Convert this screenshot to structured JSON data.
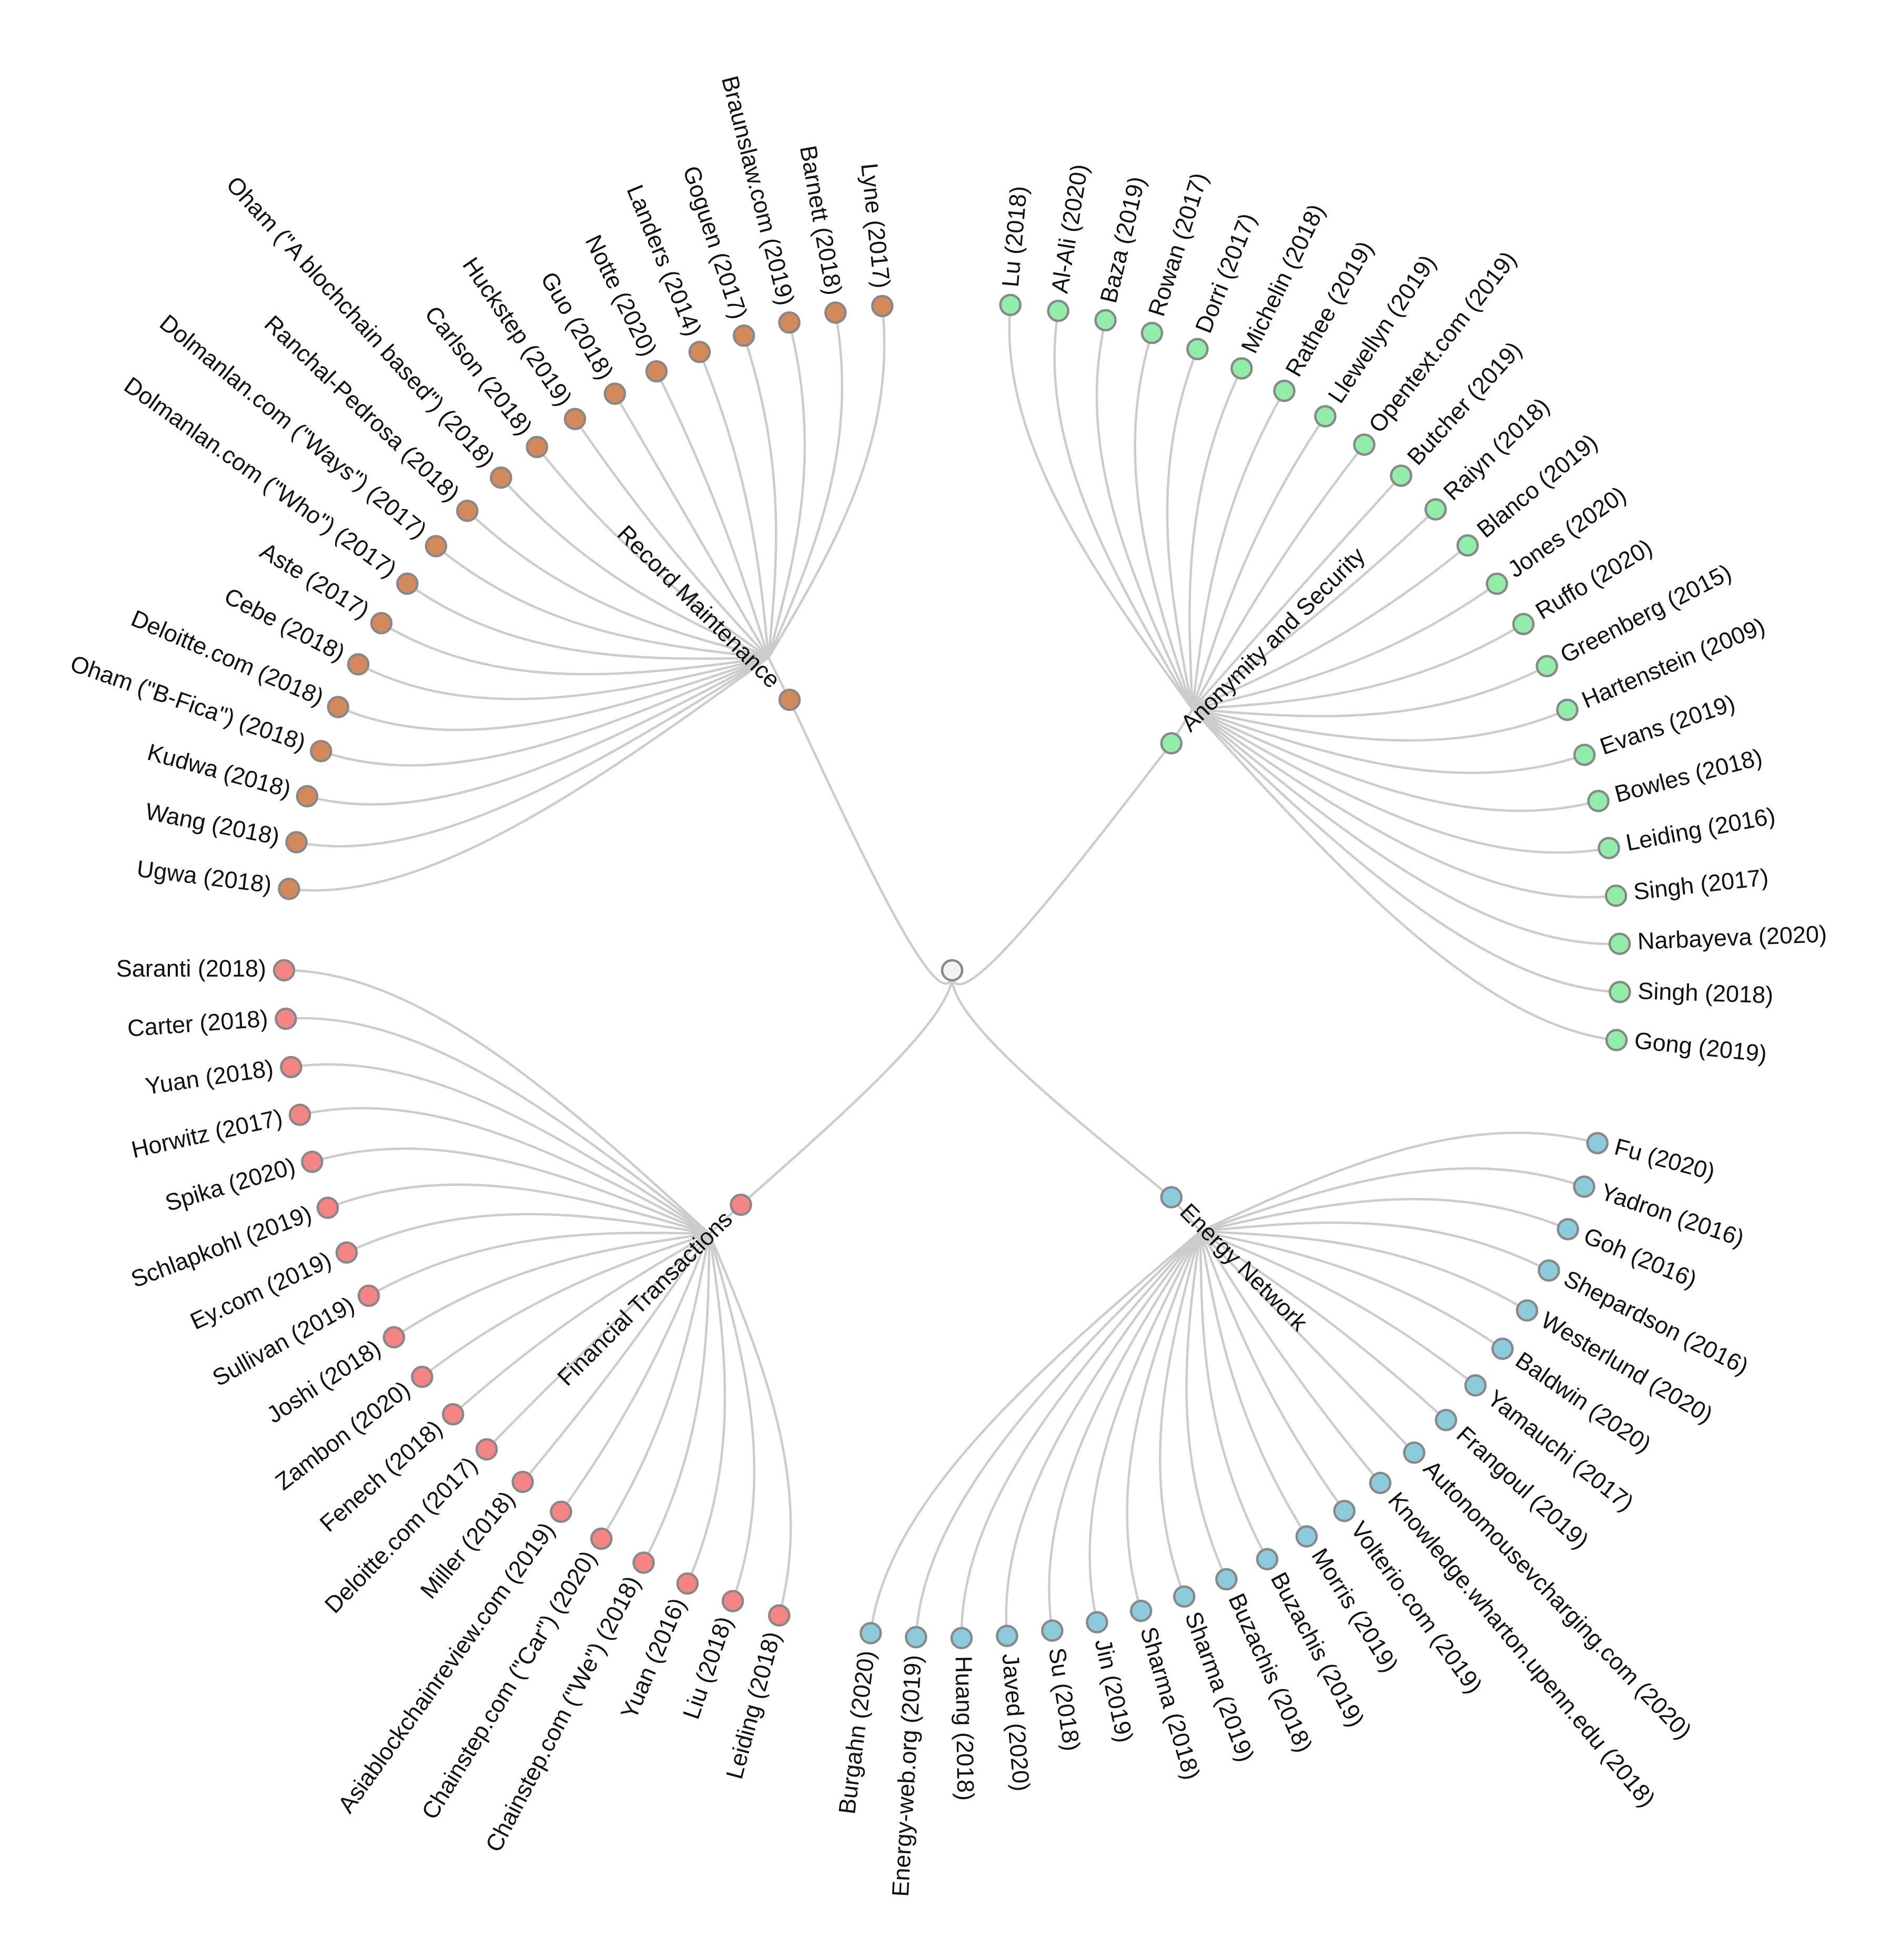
{
  "diagram": {
    "type": "radial-dendrogram",
    "node_outline_color": "#888888",
    "link_color": "#cccccc",
    "root": {
      "name": "",
      "color": "#f2f2f2"
    },
    "categories": [
      {
        "name": "Record Maintenance",
        "color": "#d4895a",
        "leaves": [
          "Ugwa (2018)",
          "Wang (2018)",
          "Kudwa (2018)",
          "Oham (\"B-Fica\") (2018)",
          "Deloitte.com (2018)",
          "Cebe (2018)",
          "Aste (2017)",
          "Dolmanlan.com (\"Who\") (2017)",
          "Dolmanlan.com (\"Ways\") (2017)",
          "Ranchal-Pedrosa (2018)",
          "Oham (\"A blochchain based\") (2018)",
          "Carlson (2018)",
          "Huckstep (2019)",
          "Guo (2018)",
          "Notte (2020)",
          "Landers (2014)",
          "Goguen (2017)",
          "Braunslaw.com (2019)",
          "Barnett (2018)",
          "Lyne (2017)"
        ]
      },
      {
        "name": "Anonymity and Security",
        "color": "#90eea8",
        "leaves": [
          "Lu (2018)",
          "Al-Ali (2020)",
          "Baza (2019)",
          "Rowan (2017)",
          "Dorri (2017)",
          "Michelin (2018)",
          "Rathee (2019)",
          "Llewellyn (2019)",
          "Opentext.com (2019)",
          "Butcher (2019)",
          "Raiyn (2018)",
          "Blanco (2019)",
          "Jones (2020)",
          "Ruffo (2020)",
          "Greenberg (2015)",
          "Hartenstein (2009)",
          "Evans (2019)",
          "Bowles (2018)",
          "Leiding (2016)",
          "Singh (2017)",
          "Narbayeva (2020)",
          "Singh (2018)",
          "Gong (2019)"
        ]
      },
      {
        "name": "Energy Network",
        "color": "#8ccbdc",
        "leaves": [
          "Fu (2020)",
          "Yadron (2016)",
          "Goh (2016)",
          "Shepardson (2016)",
          "Westerlund (2020)",
          "Baldwin (2020)",
          "Yamauchi (2017)",
          "Frangoul (2019)",
          "Autonomousevcharging.com (2020)",
          "Knowledge.wharton.upenn.edu (2018)",
          "Volterio.com (2019)",
          "Morris (2019)",
          "Buzachis (2019)",
          "Buzachis (2018)",
          "Sharma (2019)",
          "Sharma (2018)",
          "Jin (2019)",
          "Su (2018)",
          "Javed (2020)",
          "Huang (2018)",
          "Energy-web.org (2019)",
          "Burgahn (2020)"
        ]
      },
      {
        "name": "Financial Transactions",
        "color": "#f58484",
        "leaves": [
          "Leiding (2018)",
          "Liu (2018)",
          "Yuan (2016)",
          "Chainstep.com (\"We\") (2018)",
          "Chainstep.com (\"Car\") (2020)",
          "Asiablockchainreview.com (2019)",
          "Miller (2018)",
          "Deloitte.com (2017)",
          "Fenech (2018)",
          "Zambon (2020)",
          "Joshi (2018)",
          "Sullivan (2019)",
          "Ey.com (2019)",
          "Schlapkohl (2019)",
          "Spika (2020)",
          "Horwitz (2017)",
          "Yuan (2018)",
          "Carter (2018)",
          "Saranti (2018)"
        ]
      }
    ]
  }
}
